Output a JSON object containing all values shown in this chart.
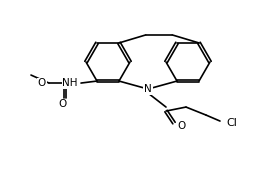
{
  "background_color": "#ffffff",
  "line_color": "#000000",
  "line_width": 1.2,
  "text_color": "#000000",
  "font_size": 7.5,
  "labels": {
    "N": "N",
    "O_carbonyl": "O",
    "NH": "NH",
    "O1": "O",
    "Cl": "Cl"
  }
}
